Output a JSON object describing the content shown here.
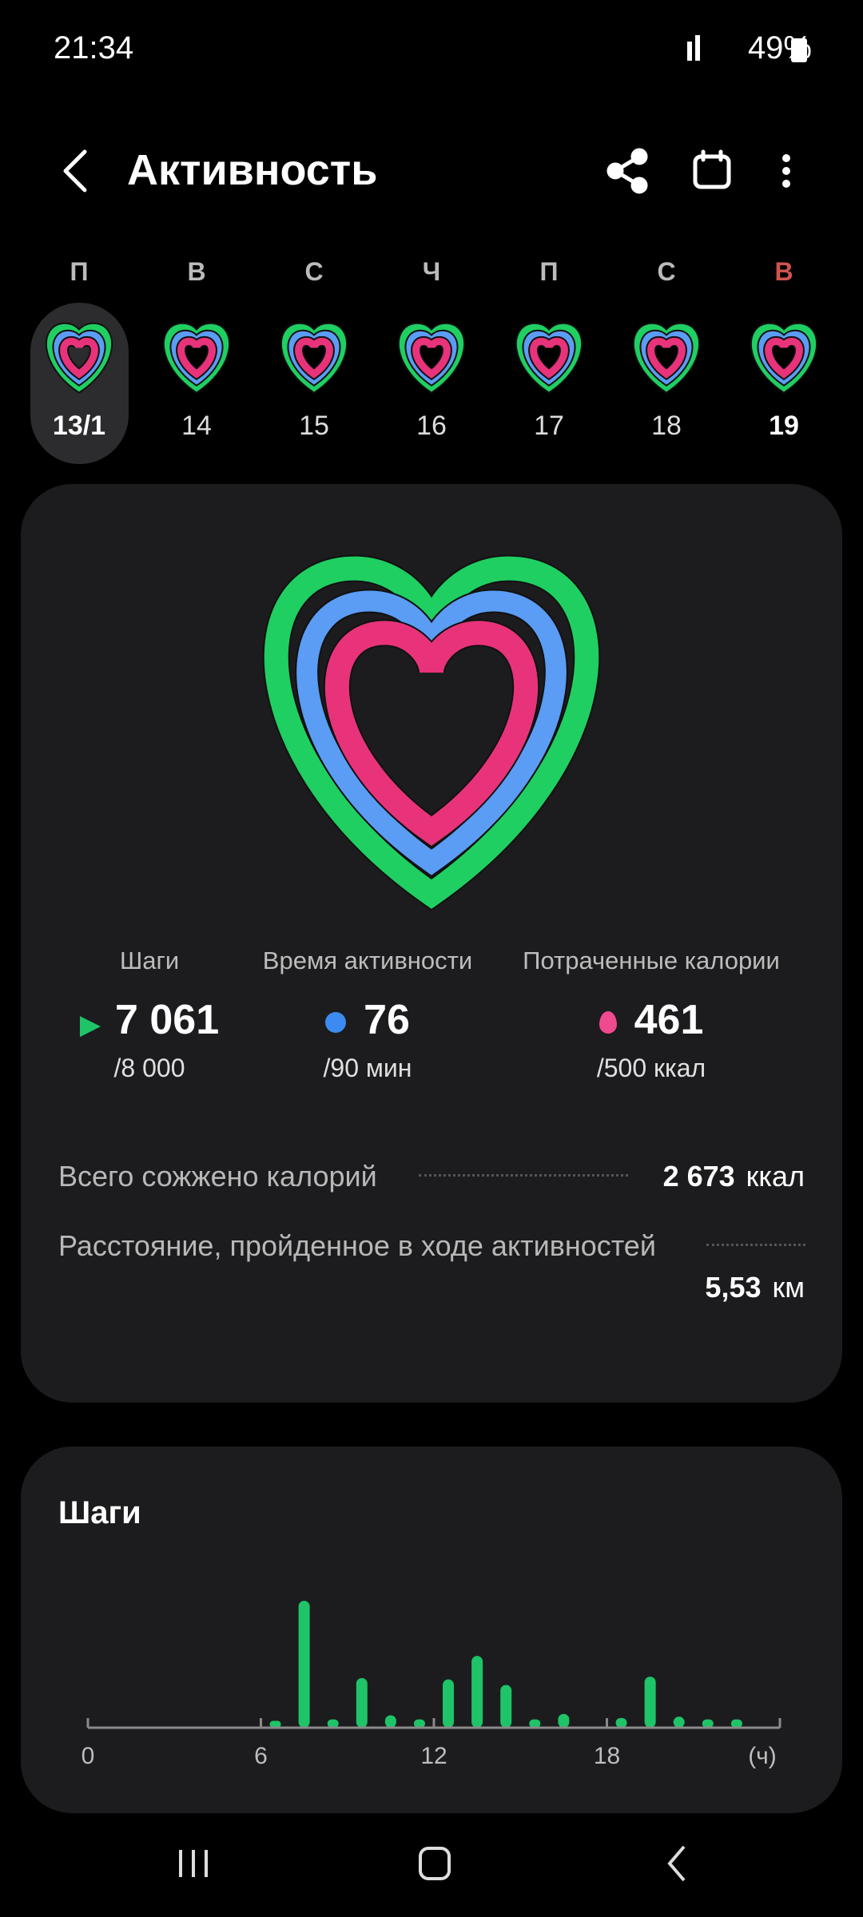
{
  "status_bar": {
    "time": "21:34",
    "battery": "49%"
  },
  "header": {
    "title": "Активность"
  },
  "week": {
    "days": [
      {
        "letter": "П",
        "date": "13/1"
      },
      {
        "letter": "В",
        "date": "14"
      },
      {
        "letter": "С",
        "date": "15"
      },
      {
        "letter": "Ч",
        "date": "16"
      },
      {
        "letter": "П",
        "date": "17"
      },
      {
        "letter": "С",
        "date": "18"
      },
      {
        "letter": "В",
        "date": "19"
      }
    ]
  },
  "summary": {
    "metrics": [
      {
        "label": "Шаги",
        "value": "7 061",
        "goal": "/8 000"
      },
      {
        "label": "Время активности",
        "value": "76",
        "goal": "/90 мин"
      },
      {
        "label": "Потраченные калории",
        "value": "461",
        "goal": "/500 ккал"
      }
    ],
    "total_calories": {
      "label": "Всего сожжено калорий",
      "value": "2 673",
      "unit": "ккал"
    },
    "distance": {
      "label": "Расстояние, пройденное в ходе активностей",
      "value": "5,53",
      "unit": "км"
    }
  },
  "chart_data": {
    "type": "bar",
    "title": "Шаги",
    "x": [
      6,
      7,
      8,
      9,
      10,
      11,
      12,
      13,
      14,
      15,
      16,
      18,
      19,
      20,
      21,
      22
    ],
    "values": [
      100,
      1840,
      120,
      720,
      180,
      120,
      700,
      1040,
      620,
      120,
      200,
      140,
      740,
      160,
      120,
      120
    ],
    "color": "#1ec467",
    "xlim": [
      0,
      24
    ],
    "xticks": [
      0,
      6,
      12,
      18,
      {
        "value": 24,
        "label": "(ч)"
      }
    ],
    "ylim": [
      0,
      2200
    ]
  }
}
